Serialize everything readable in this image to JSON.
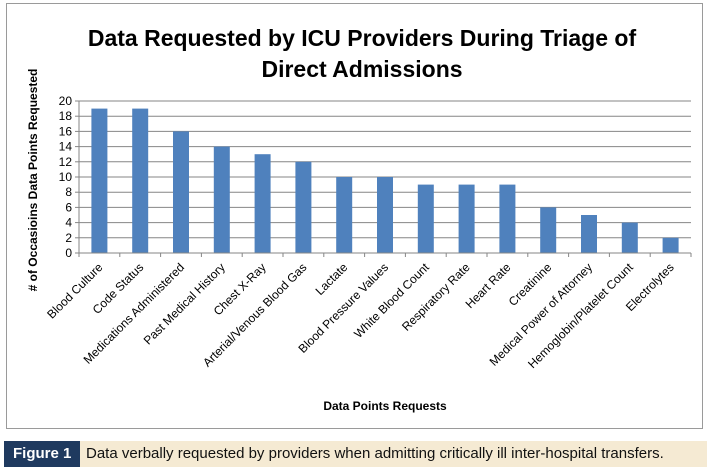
{
  "chart_data": {
    "type": "bar",
    "title_lines": [
      "Data Requested by ICU Providers During Triage of",
      "Direct Admissions"
    ],
    "xlabel": "Data Points Requests",
    "ylabel": "# of Occasioins Data Points Requested",
    "ylim": [
      0,
      20
    ],
    "ytick_step": 2,
    "grid": true,
    "legend": "none",
    "categories": [
      "Blood Culture",
      "Code Status",
      "Medications Administered",
      "Past Medical History",
      "Chest X-Ray",
      "Arterial/Venous Blood Gas",
      "Lactate",
      "Blood Pressure Values",
      "White Blood Count",
      "Respiratory Rate",
      "Heart Rate",
      "Creatinine",
      "Medical Power of Attorney",
      "Hemoglobin/Platelet Count",
      "Electrolytes"
    ],
    "values": [
      19,
      19,
      16,
      14,
      13,
      12,
      10,
      10,
      9,
      9,
      9,
      6,
      5,
      4,
      2
    ],
    "bar_color": "#4f81bd"
  },
  "caption": {
    "label": "Figure 1",
    "text": "Data verbally requested by providers when admitting critically ill inter-hospital transfers."
  }
}
